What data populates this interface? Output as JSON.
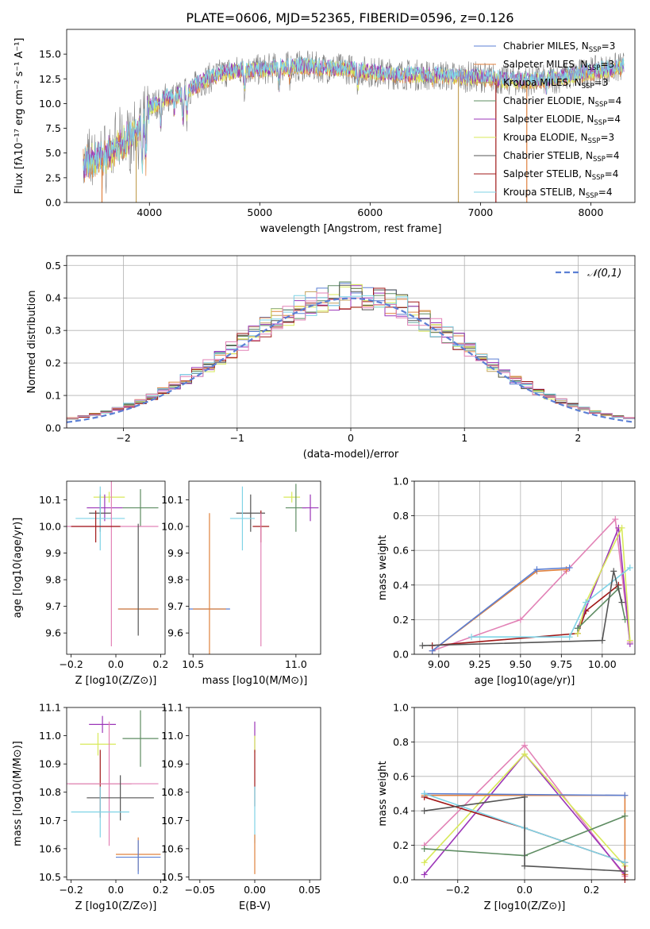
{
  "title": "PLATE=0606, MJD=52365, FIBERID=0596, z=0.126",
  "colors": {
    "Chabrier MILES": "#5b7fd4",
    "Salpeter MILES": "#e0823e",
    "Kroupa MILES": "#c4a25a",
    "Chabrier ELODIE": "#5e8c62",
    "Salpeter ELODIE": "#9b35b8",
    "Kroupa ELODIE": "#d8e95a",
    "Chabrier STELIB": "#555555",
    "Salpeter STELIB": "#a01818",
    "Kroupa STELIB": "#7fd3e6",
    "pink": "#e282b6",
    "orange_line": "#e07b22",
    "data": "#7f7f7f"
  },
  "legend_entries": [
    {
      "pre": "Chabrier MILES, N",
      "sub": "SSP",
      "post": "=3",
      "color_key": "Chabrier MILES"
    },
    {
      "pre": "Salpeter MILES, N",
      "sub": "SSP",
      "post": "=3",
      "color_key": "Salpeter MILES"
    },
    {
      "pre": "Kroupa MILES, N",
      "sub": "SSP",
      "post": "=3",
      "color_key": "Kroupa MILES"
    },
    {
      "pre": "Chabrier ELODIE, N",
      "sub": "SSP",
      "post": "=4",
      "color_key": "Chabrier ELODIE"
    },
    {
      "pre": "Salpeter ELODIE, N",
      "sub": "SSP",
      "post": "=4",
      "color_key": "Salpeter ELODIE"
    },
    {
      "pre": "Kroupa ELODIE, N",
      "sub": "SSP",
      "post": "=3",
      "color_key": "Kroupa ELODIE"
    },
    {
      "pre": "Chabrier STELIB, N",
      "sub": "SSP",
      "post": "=4",
      "color_key": "Chabrier STELIB"
    },
    {
      "pre": "Salpeter STELIB, N",
      "sub": "SSP",
      "post": "=4",
      "color_key": "Salpeter STELIB"
    },
    {
      "pre": "Kroupa STELIB, N",
      "sub": "SSP",
      "post": "=4",
      "color_key": "Kroupa STELIB"
    }
  ],
  "chart_data": [
    {
      "id": "spectrum",
      "type": "line",
      "xlabel": "wavelength [Angstrom, rest frame]",
      "ylabel": "Flux [fλ10⁻¹⁷ erg cm⁻² s⁻¹ A⁻¹]",
      "xlim": [
        3250,
        8400
      ],
      "ylim": [
        0,
        17.5
      ],
      "xticks": [
        4000,
        5000,
        6000,
        7000,
        8000
      ],
      "yticks": [
        0.0,
        2.5,
        5.0,
        7.5,
        10.0,
        12.5,
        15.0
      ],
      "grid": false,
      "legend": "right",
      "data_range": [
        3400,
        8300
      ],
      "envelope": {
        "x": [
          3400,
          3600,
          3800,
          3950,
          4000,
          4150,
          4300,
          4500,
          4700,
          4860,
          5000,
          5200,
          5400,
          5600,
          5800,
          6000,
          6200,
          6400,
          6600,
          6800,
          7000,
          7200,
          7400,
          7600,
          7800,
          8000,
          8300
        ],
        "y": [
          4.0,
          4.6,
          6.3,
          7.8,
          9.6,
          10.6,
          10.9,
          12.4,
          13.2,
          13.4,
          13.4,
          13.7,
          13.8,
          13.6,
          13.5,
          13.2,
          13.0,
          12.9,
          12.9,
          12.7,
          12.7,
          12.4,
          12.3,
          12.4,
          12.8,
          13.2,
          13.7
        ]
      }
    },
    {
      "id": "residuals",
      "type": "bar",
      "xlabel": "(data-model)/error",
      "ylabel": "Normed distribution",
      "xlim": [
        -2.5,
        2.5
      ],
      "ylim": [
        0,
        0.53
      ],
      "xticks": [
        -2,
        -1,
        0,
        1,
        2
      ],
      "yticks": [
        0.0,
        0.1,
        0.2,
        0.3,
        0.4,
        0.5
      ],
      "grid": true,
      "legend": "top-right",
      "legend_label": "𝒩(0,1)",
      "bin_edges": {
        "start": -2.5,
        "width": 0.1,
        "count": 50
      },
      "normal": {
        "mean": 0,
        "sd": 1
      }
    },
    {
      "id": "age_vs_Z",
      "type": "scatter",
      "xlabel": "Z [log10(Z/Z⊙)]",
      "ylabel": "age [log10(age/yr)]",
      "xlim": [
        -0.22,
        0.22
      ],
      "ylim": [
        9.52,
        10.17
      ],
      "xticks": [
        -0.2,
        0.0,
        0.2
      ],
      "yticks": [
        9.6,
        9.7,
        9.8,
        9.9,
        10.0,
        10.1
      ],
      "points": [
        {
          "c": "Kroupa ELODIE",
          "x": -0.03,
          "xe": 0.07,
          "y": 10.11,
          "ye": 0.02
        },
        {
          "c": "Salpeter ELODIE",
          "x": -0.05,
          "xe": 0.08,
          "y": 10.07,
          "ye": 0.05
        },
        {
          "c": "Chabrier ELODIE",
          "x": 0.11,
          "xe": 0.08,
          "y": 10.07,
          "ye": 0.07
        },
        {
          "c": "Chabrier STELIB",
          "x": -0.07,
          "xe": 0.05,
          "y": 10.05,
          "ye": 0.07
        },
        {
          "c": "Kroupa STELIB",
          "x": -0.07,
          "xe": 0.11,
          "y": 10.03,
          "ye": 0.12
        },
        {
          "c": "pink",
          "x": -0.02,
          "xe": 0.21,
          "y": 10.0,
          "ye": 0.45
        },
        {
          "c": "Salpeter STELIB",
          "x": -0.09,
          "xe": 0.11,
          "y": 10.0,
          "ye": 0.06
        },
        {
          "c": "Chabrier MILES",
          "x": 0.1,
          "xe": 0.09,
          "y": 9.69,
          "ye": 0.0
        },
        {
          "c": "Salpeter MILES",
          "x": 0.1,
          "xe": 0.09,
          "y": 9.69,
          "ye": 0.0
        },
        {
          "c": "Chabrier STELIB",
          "x": 0.1,
          "xe": 0.0,
          "y": 9.8,
          "ye": 0.21
        }
      ]
    },
    {
      "id": "age_vs_mass",
      "type": "scatter",
      "xlabel": "mass [log10(M/M⊙)]",
      "ylabel": "",
      "xlim": [
        10.48,
        11.12
      ],
      "ylim": [
        9.52,
        10.17
      ],
      "xticks": [
        10.5,
        11.0
      ],
      "yticks": [
        9.6,
        9.7,
        9.8,
        9.9,
        10.0,
        10.1
      ],
      "points": [
        {
          "c": "Kroupa ELODIE",
          "x": 10.98,
          "xe": 0.04,
          "y": 10.11,
          "ye": 0.02
        },
        {
          "c": "Chabrier ELODIE",
          "x": 11.0,
          "xe": 0.05,
          "y": 10.07,
          "ye": 0.09
        },
        {
          "c": "Salpeter ELODIE",
          "x": 11.07,
          "xe": 0.04,
          "y": 10.07,
          "ye": 0.05
        },
        {
          "c": "Chabrier STELIB",
          "x": 10.78,
          "xe": 0.07,
          "y": 10.05,
          "ye": 0.07
        },
        {
          "c": "Kroupa STELIB",
          "x": 10.74,
          "xe": 0.06,
          "y": 10.03,
          "ye": 0.12
        },
        {
          "c": "Salpeter STELIB",
          "x": 10.83,
          "xe": 0.04,
          "y": 10.0,
          "ye": 0.06
        },
        {
          "c": "pink",
          "x": 10.83,
          "xe": 0.0,
          "y": 9.8,
          "ye": 0.25
        },
        {
          "c": "Chabrier MILES",
          "x": 10.58,
          "xe": 0.1,
          "y": 9.69,
          "ye": 0.0
        },
        {
          "c": "Salpeter MILES",
          "x": 10.58,
          "xe": 0.08,
          "y": 9.69,
          "ye": 0.36
        }
      ]
    },
    {
      "id": "weight_vs_age",
      "type": "line",
      "xlabel": "age [log10(age/yr)]",
      "ylabel": "mass weight",
      "xlim": [
        8.85,
        10.2
      ],
      "ylim": [
        0,
        1.0
      ],
      "xticks": [
        9.0,
        9.25,
        9.5,
        9.75,
        10.0
      ],
      "yticks": [
        0.0,
        0.2,
        0.4,
        0.6,
        0.8,
        1.0
      ],
      "grid": true,
      "series": [
        {
          "c": "pink",
          "x": [
            8.96,
            9.5,
            9.78,
            10.08,
            10.17
          ],
          "y": [
            0.02,
            0.2,
            0.48,
            0.78,
            0.07
          ]
        },
        {
          "c": "Salpeter MILES",
          "x": [
            8.96,
            9.6,
            9.78
          ],
          "y": [
            0.02,
            0.48,
            0.49
          ]
        },
        {
          "c": "Chabrier MILES",
          "x": [
            8.96,
            9.6,
            9.8
          ],
          "y": [
            0.02,
            0.49,
            0.5
          ]
        },
        {
          "c": "Salpeter STELIB",
          "x": [
            8.96,
            9.85,
            9.9,
            10.1
          ],
          "y": [
            0.05,
            0.12,
            0.25,
            0.4
          ]
        },
        {
          "c": "Salpeter ELODIE",
          "x": [
            9.85,
            10.1,
            10.17
          ],
          "y": [
            0.15,
            0.73,
            0.06
          ]
        },
        {
          "c": "Kroupa ELODIE",
          "x": [
            9.85,
            9.9,
            10.12,
            10.17
          ],
          "y": [
            0.12,
            0.3,
            0.73,
            0.08
          ]
        },
        {
          "c": "Chabrier ELODIE",
          "x": [
            9.85,
            10.1,
            10.14
          ],
          "y": [
            0.15,
            0.38,
            0.2
          ]
        },
        {
          "c": "Kroupa STELIB",
          "x": [
            9.2,
            9.8,
            9.9,
            10.17
          ],
          "y": [
            0.1,
            0.1,
            0.3,
            0.5
          ]
        },
        {
          "c": "Chabrier STELIB",
          "x": [
            8.9,
            10.0,
            10.07,
            10.12
          ],
          "y": [
            0.05,
            0.08,
            0.48,
            0.3
          ]
        }
      ]
    },
    {
      "id": "mass_vs_Z",
      "type": "scatter",
      "xlabel": "Z [log10(Z/Z⊙)]",
      "ylabel": "mass [log10(M/M⊙)]",
      "xlim": [
        -0.22,
        0.22
      ],
      "ylim": [
        10.49,
        11.1
      ],
      "xticks": [
        -0.2,
        0.0,
        0.2
      ],
      "yticks": [
        10.5,
        10.6,
        10.7,
        10.8,
        10.9,
        11.0,
        11.1
      ],
      "points": [
        {
          "c": "Salpeter ELODIE",
          "x": -0.06,
          "xe": 0.06,
          "y": 11.04,
          "ye": 0.03
        },
        {
          "c": "Chabrier ELODIE",
          "x": 0.11,
          "xe": 0.08,
          "y": 10.99,
          "ye": 0.1
        },
        {
          "c": "Kroupa ELODIE",
          "x": -0.08,
          "xe": 0.08,
          "y": 10.97,
          "ye": 0.04
        },
        {
          "c": "Salpeter STELIB",
          "x": -0.07,
          "xe": 0.14,
          "y": 10.83,
          "ye": 0.12
        },
        {
          "c": "pink",
          "x": -0.03,
          "xe": 0.22,
          "y": 10.83,
          "ye": 0.22
        },
        {
          "c": "Chabrier STELIB",
          "x": 0.02,
          "xe": 0.15,
          "y": 10.78,
          "ye": 0.08
        },
        {
          "c": "Kroupa STELIB",
          "x": -0.07,
          "xe": 0.13,
          "y": 10.73,
          "ye": 0.09
        },
        {
          "c": "Salpeter MILES",
          "x": 0.1,
          "xe": 0.1,
          "y": 10.58,
          "ye": 0.06
        },
        {
          "c": "Chabrier MILES",
          "x": 0.1,
          "xe": 0.1,
          "y": 10.57,
          "ye": 0.06
        }
      ]
    },
    {
      "id": "mass_vs_EBV",
      "type": "scatter",
      "xlabel": "E(B-V)",
      "ylabel": "",
      "xlim": [
        -0.06,
        0.06
      ],
      "ylim": [
        10.49,
        11.1
      ],
      "xticks": [
        -0.05,
        0.0,
        0.05
      ],
      "yticks": [
        10.5,
        10.6,
        10.7,
        10.8,
        10.9,
        11.0,
        11.1
      ],
      "points": [
        {
          "c": "Salpeter ELODIE",
          "x": 0,
          "xe": 0,
          "y": 11.0,
          "ye": 0.05
        },
        {
          "c": "Kroupa ELODIE",
          "x": 0,
          "xe": 0,
          "y": 10.97,
          "ye": 0.03
        },
        {
          "c": "Salpeter STELIB",
          "x": 0,
          "xe": 0,
          "y": 10.85,
          "ye": 0.1
        },
        {
          "c": "Kroupa STELIB",
          "x": 0,
          "xe": 0,
          "y": 10.72,
          "ye": 0.1
        },
        {
          "c": "Salpeter MILES",
          "x": 0,
          "xe": 0,
          "y": 10.58,
          "ye": 0.07
        }
      ]
    },
    {
      "id": "weight_vs_Z",
      "type": "line",
      "xlabel": "Z [log10(Z/Z⊙)]",
      "ylabel": "mass weight",
      "xlim": [
        -0.33,
        0.33
      ],
      "ylim": [
        0,
        1.0
      ],
      "xticks": [
        -0.2,
        0.0,
        0.2
      ],
      "yticks": [
        0.0,
        0.2,
        0.4,
        0.6,
        0.8,
        1.0
      ],
      "grid": true,
      "series": [
        {
          "c": "pink",
          "x": [
            -0.3,
            0.0,
            0.3
          ],
          "y": [
            0.2,
            0.78,
            0.02
          ]
        },
        {
          "c": "Salpeter ELODIE",
          "x": [
            -0.3,
            0.0,
            0.3
          ],
          "y": [
            0.03,
            0.73,
            0.03
          ]
        },
        {
          "c": "Kroupa ELODIE",
          "x": [
            -0.3,
            0.0,
            0.3
          ],
          "y": [
            0.1,
            0.73,
            0.08
          ]
        },
        {
          "c": "Salpeter MILES",
          "x": [
            -0.3,
            0.3,
            0.3
          ],
          "y": [
            0.49,
            0.49,
            0.03
          ]
        },
        {
          "c": "Chabrier MILES",
          "x": [
            -0.3,
            0.3
          ],
          "y": [
            0.5,
            0.49
          ]
        },
        {
          "c": "Salpeter STELIB",
          "x": [
            -0.3,
            0.0,
            0.3,
            0.3
          ],
          "y": [
            0.48,
            0.3,
            0.1,
            0.0
          ]
        },
        {
          "c": "Kroupa STELIB",
          "x": [
            -0.3,
            0.0,
            0.3
          ],
          "y": [
            0.5,
            0.3,
            0.1
          ]
        },
        {
          "c": "Chabrier ELODIE",
          "x": [
            -0.3,
            0.0,
            0.3
          ],
          "y": [
            0.18,
            0.14,
            0.37
          ]
        },
        {
          "c": "Chabrier STELIB",
          "x": [
            -0.3,
            0.0,
            0.0,
            0.3
          ],
          "y": [
            0.4,
            0.48,
            0.08,
            0.05
          ]
        }
      ]
    }
  ]
}
